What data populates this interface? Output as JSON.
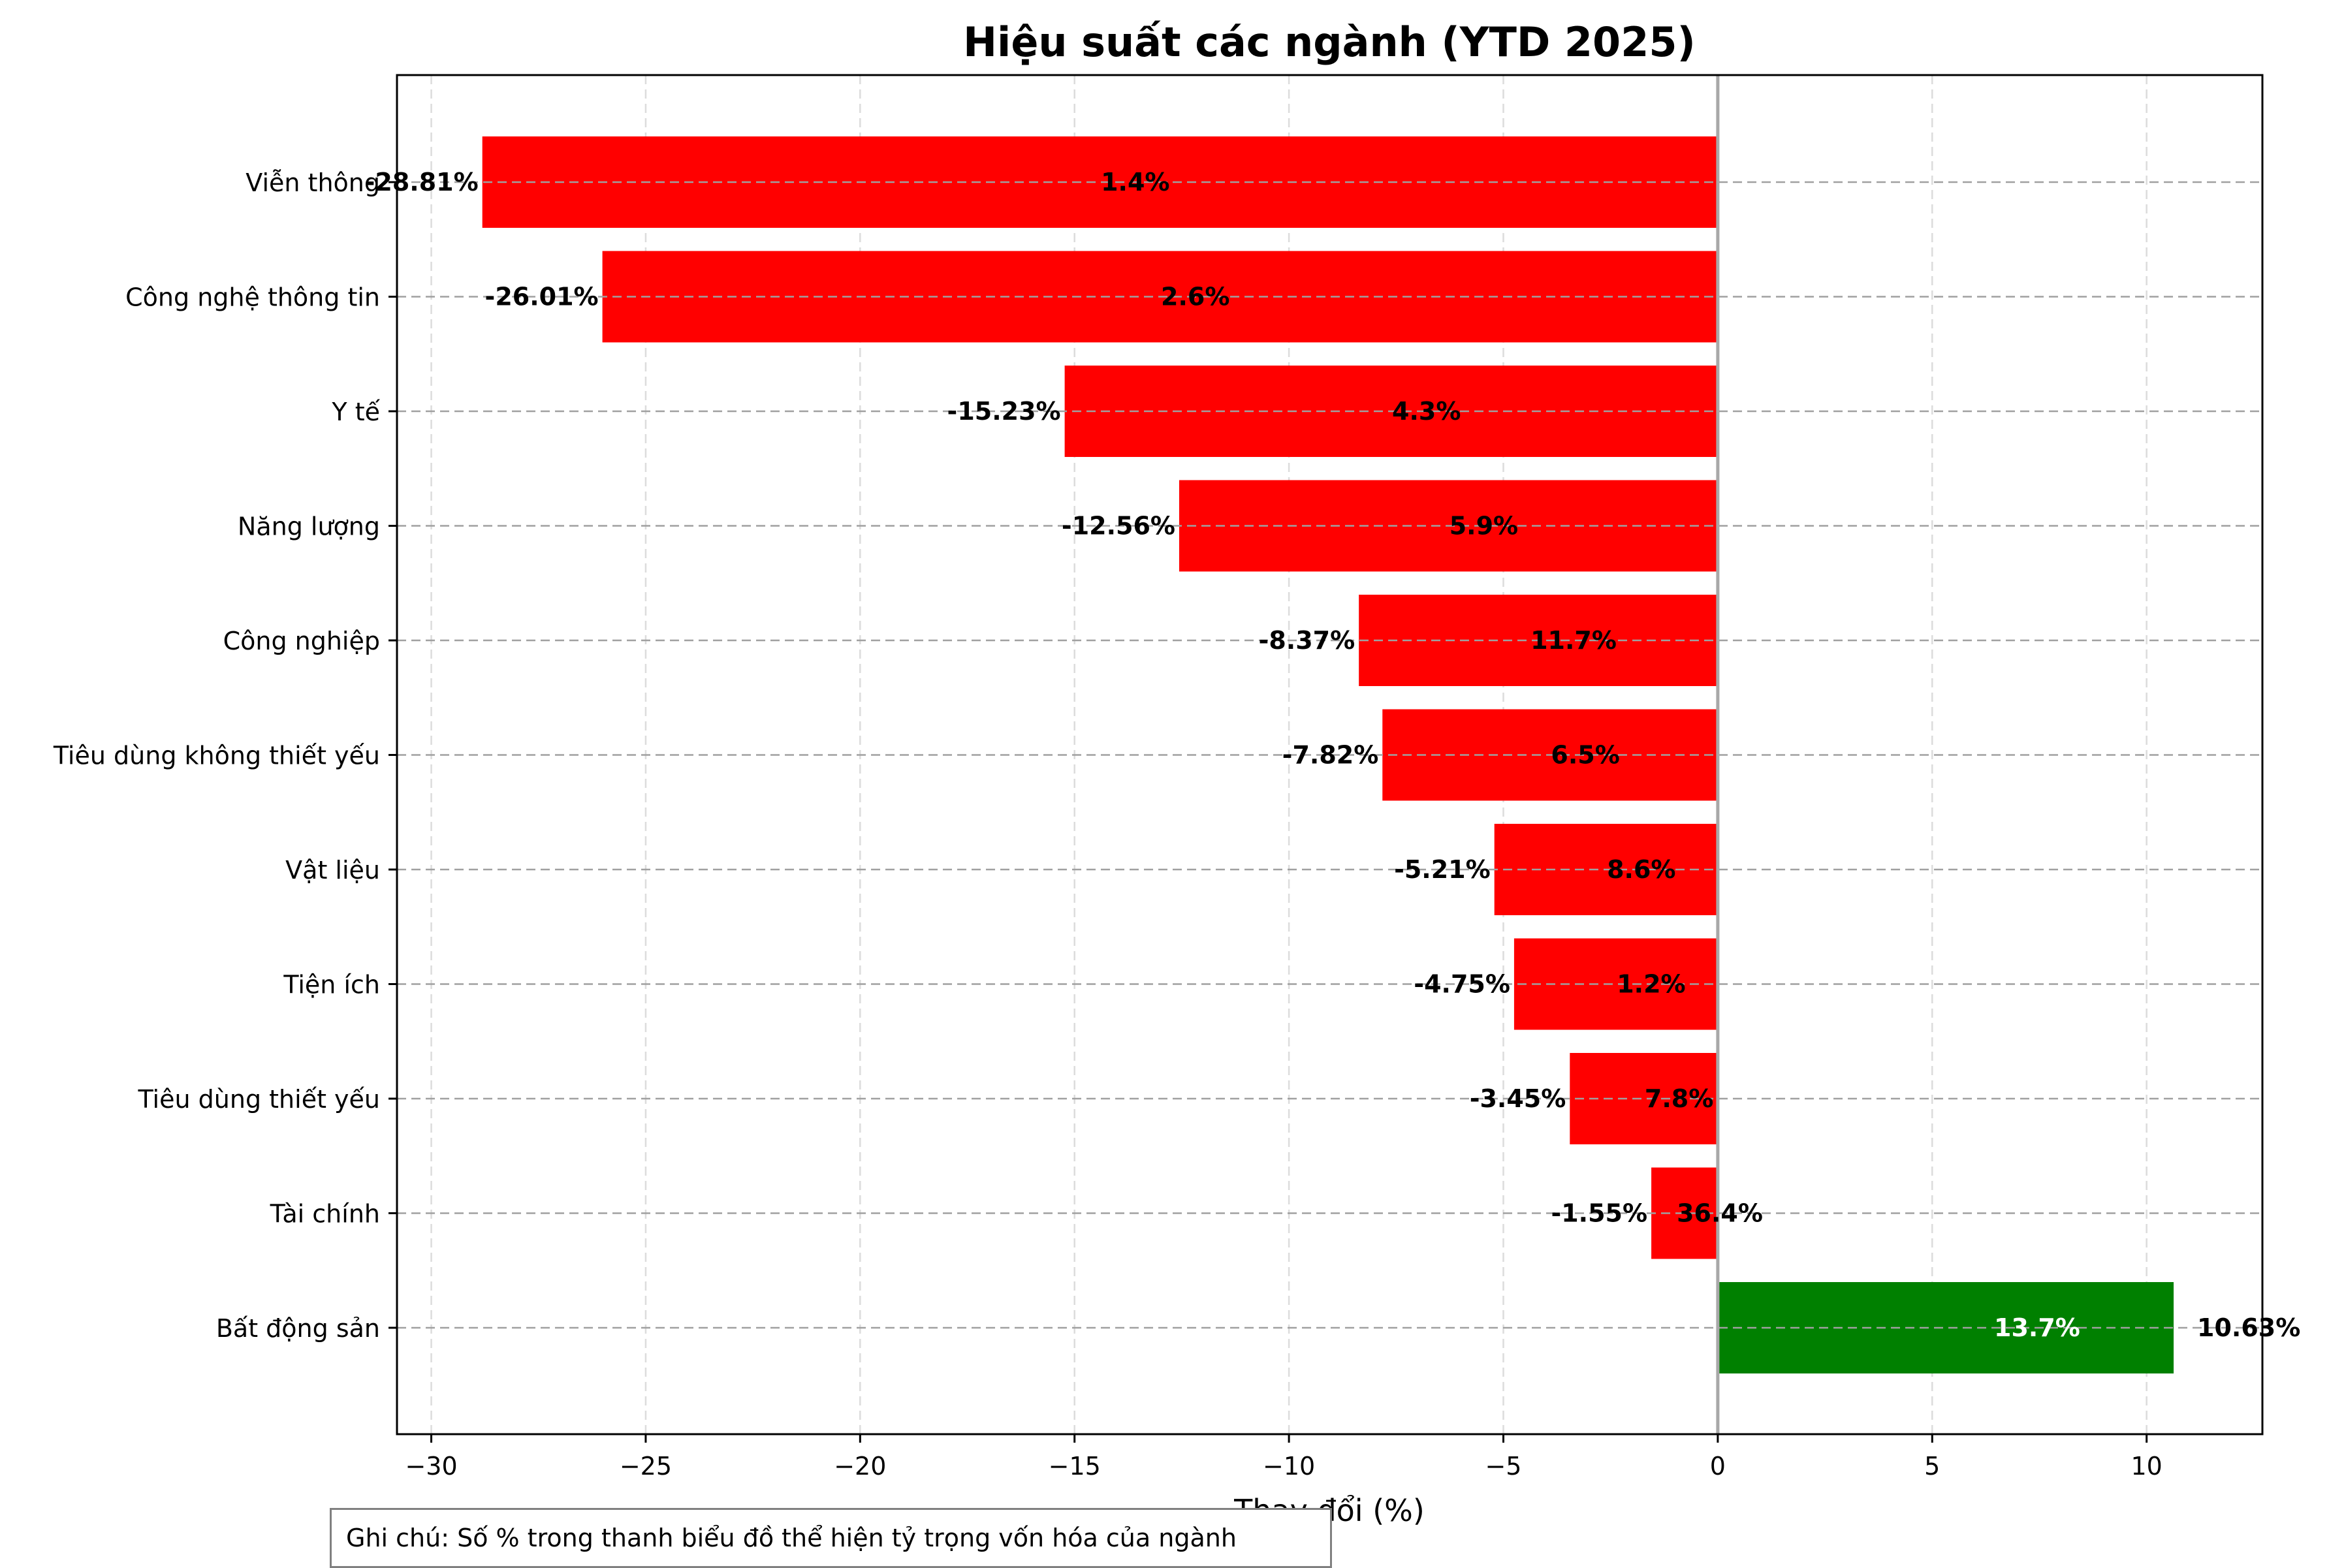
{
  "chart_data": {
    "type": "bar",
    "orientation": "horizontal",
    "title": "Hiệu suất các ngành (YTD 2025)",
    "xlabel": "Thay đổi (%)",
    "ylabel": "",
    "xlim": [
      -30.8,
      12.7
    ],
    "xticks": [
      -30,
      -25,
      -20,
      -15,
      -10,
      -5,
      0,
      5,
      10
    ],
    "xtick_labels": [
      "−30",
      "−25",
      "−20",
      "−15",
      "−10",
      "−5",
      "0",
      "5",
      "10"
    ],
    "grid": true,
    "categories": [
      "Viễn thông",
      "Công nghệ thông tin",
      "Y tế",
      "Năng lượng",
      "Công nghiệp",
      "Tiêu dùng không thiết yếu",
      "Vật liệu",
      "Tiện ích",
      "Tiêu dùng thiết yếu",
      "Tài chính",
      "Bất động sản"
    ],
    "values": [
      -28.81,
      -26.01,
      -15.23,
      -12.56,
      -8.37,
      -7.82,
      -5.21,
      -4.75,
      -3.45,
      -1.55,
      10.63
    ],
    "value_labels": [
      "-28.81%",
      "-26.01%",
      "-15.23%",
      "-12.56%",
      "-8.37%",
      "-7.82%",
      "-5.21%",
      "-4.75%",
      "-3.45%",
      "-1.55%",
      "10.63%"
    ],
    "weight_labels": [
      "1.4%",
      "2.6%",
      "4.3%",
      "5.9%",
      "11.7%",
      "6.5%",
      "8.6%",
      "1.2%",
      "7.8%",
      "36.4%",
      "13.7%"
    ],
    "colors": {
      "negative": "#ff0000",
      "positive": "#008000"
    },
    "note": "Ghi chú: Số % trong thanh biểu đồ thể hiện tỷ trọng vốn hóa của ngành"
  }
}
